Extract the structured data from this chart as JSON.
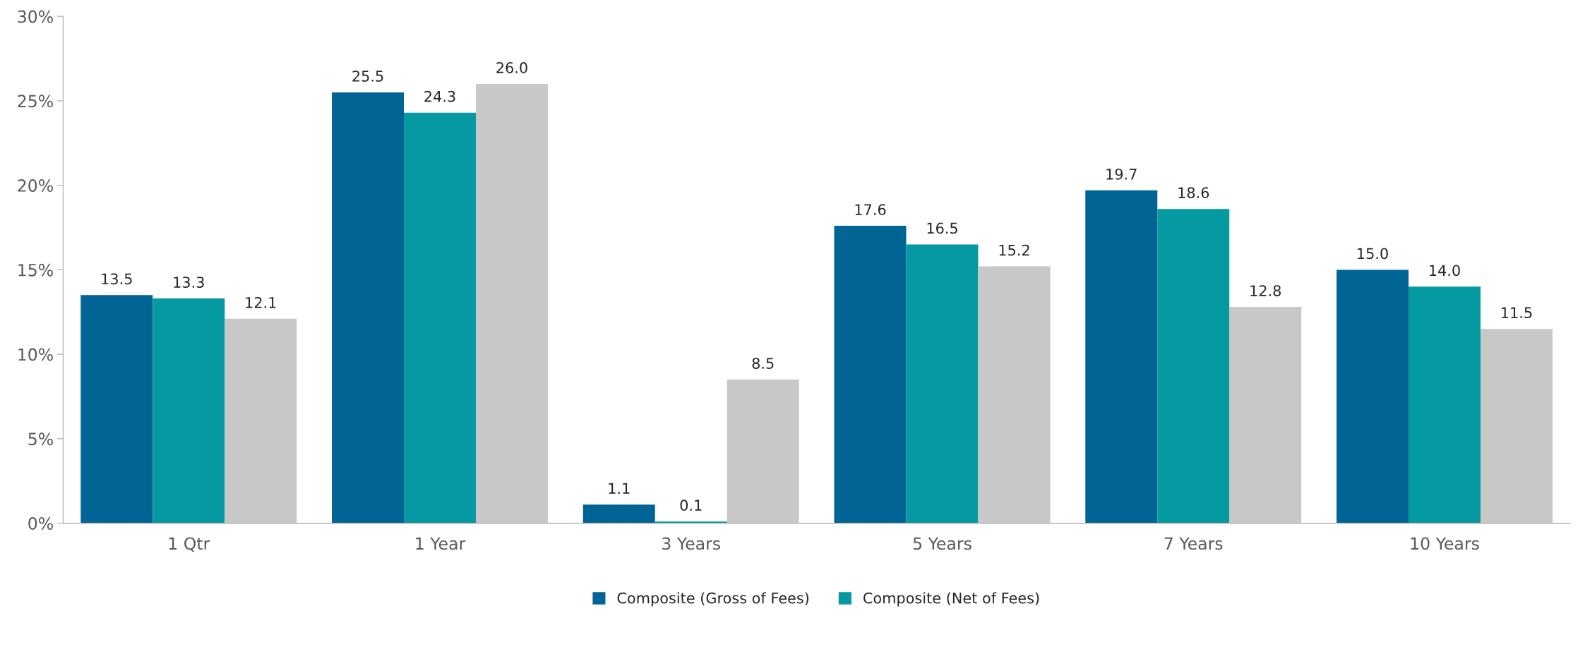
{
  "chart_data": {
    "type": "bar",
    "categories": [
      "1 Qtr",
      "1 Year",
      "3 Years",
      "5 Years",
      "7 Years",
      "10 Years"
    ],
    "series": [
      {
        "name": "Composite (Gross of Fees)",
        "color": "#006595",
        "values": [
          13.5,
          25.5,
          1.1,
          17.6,
          19.7,
          15.0
        ],
        "value_labels": [
          "13.5",
          "25.5",
          "1.1",
          "17.6",
          "19.7",
          "15.0"
        ]
      },
      {
        "name": "Composite (Net of Fees)",
        "color": "#0599a1",
        "values": [
          13.3,
          24.3,
          0.1,
          16.5,
          18.6,
          14.0
        ],
        "value_labels": [
          "13.3",
          "24.3",
          "0.1",
          "16.5",
          "18.6",
          "14.0"
        ]
      },
      {
        "color": "#c8c8c8",
        "values": [
          12.1,
          26.0,
          8.5,
          15.2,
          12.8,
          11.5
        ],
        "value_labels": [
          "12.1",
          "26.0",
          "8.5",
          "15.2",
          "12.8",
          "11.5"
        ]
      }
    ],
    "ylim": [
      0,
      30
    ],
    "yticks": [
      {
        "value": 0,
        "label": "0%"
      },
      {
        "value": 5,
        "label": "5%"
      },
      {
        "value": 10,
        "label": "10%"
      },
      {
        "value": 15,
        "label": "15%"
      },
      {
        "value": 20,
        "label": "20%"
      },
      {
        "value": 25,
        "label": "25%"
      },
      {
        "value": 30,
        "label": "30%"
      }
    ],
    "grid": false,
    "legend": "bottom"
  }
}
